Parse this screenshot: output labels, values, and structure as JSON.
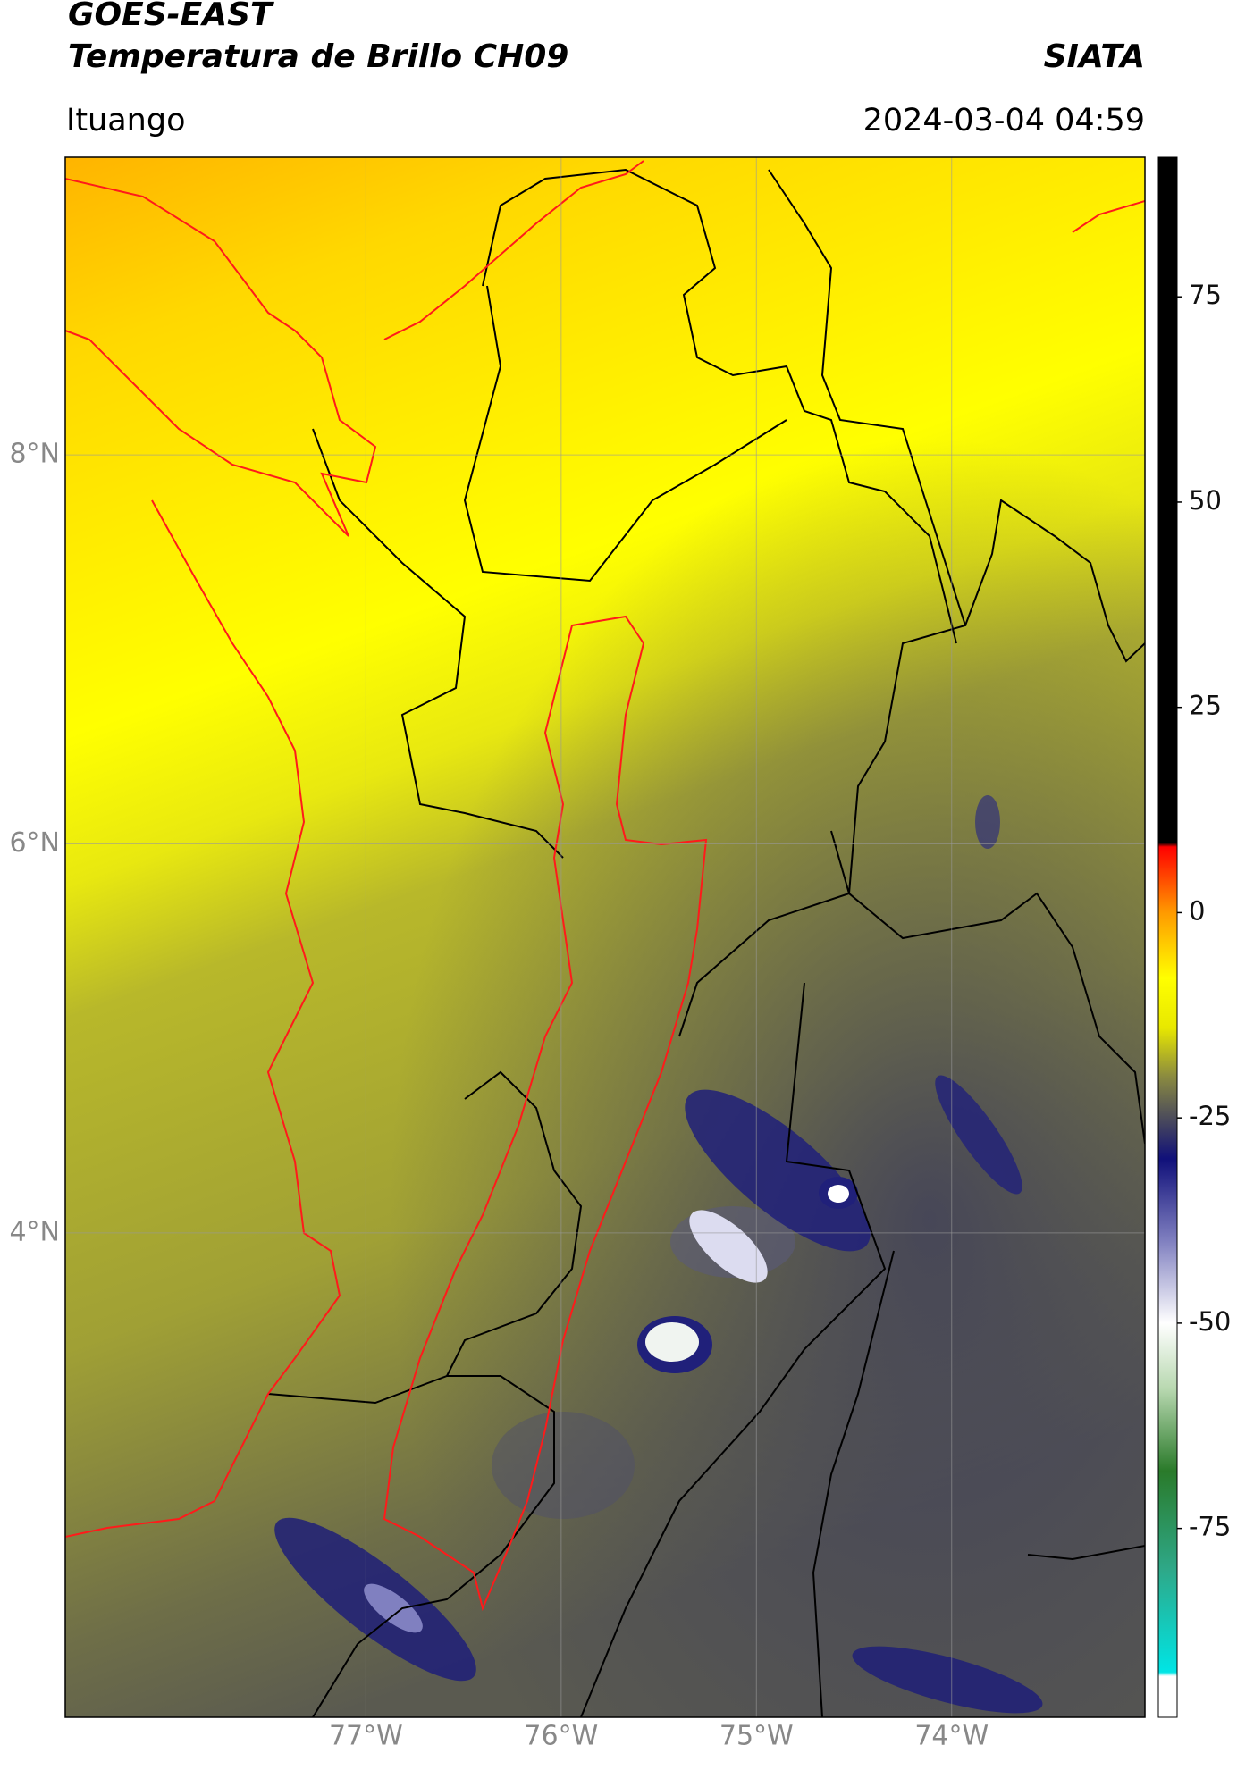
{
  "header": {
    "title": "GOES-EAST",
    "subtitle": "Temperatura de Brillo CH09",
    "organization": "SIATA",
    "location": "Ituango",
    "datetime": "2024-03-04 04:59"
  },
  "map": {
    "xlim": [
      -78.54,
      -73.01
    ],
    "ylim": [
      1.51,
      9.53
    ],
    "xticks": [
      {
        "value": -77,
        "label": "77°W"
      },
      {
        "value": -76,
        "label": "76°W"
      },
      {
        "value": -75,
        "label": "75°W"
      },
      {
        "value": -74,
        "label": "74°W"
      }
    ],
    "yticks": [
      {
        "value": 8,
        "label": "8°N"
      },
      {
        "value": 6,
        "label": "6°N"
      },
      {
        "value": 4,
        "label": "4°N"
      }
    ],
    "grid": true
  },
  "colorbar": {
    "lim": [
      -98,
      92
    ],
    "ticks": [
      75,
      50,
      25,
      0,
      -25,
      -50,
      -75
    ],
    "colors": [
      {
        "value": -98,
        "color": "#ffffff"
      },
      {
        "value": -93,
        "color": "#ffffff"
      },
      {
        "value": -92.5,
        "color": "#00e5e5"
      },
      {
        "value": -80,
        "color": "#2ea888"
      },
      {
        "value": -68,
        "color": "#2a7a2a"
      },
      {
        "value": -58,
        "color": "#b8d8b0"
      },
      {
        "value": -50,
        "color": "#ffffff"
      },
      {
        "value": -40,
        "color": "#8080c0"
      },
      {
        "value": -30,
        "color": "#10107a"
      },
      {
        "value": -26,
        "color": "#404060"
      },
      {
        "value": -20,
        "color": "#8a8a40"
      },
      {
        "value": -14,
        "color": "#e8e800"
      },
      {
        "value": -8,
        "color": "#ffff00"
      },
      {
        "value": 0,
        "color": "#ff9a00"
      },
      {
        "value": 8,
        "color": "#ff0000"
      },
      {
        "value": 8.5,
        "color": "#000000"
      },
      {
        "value": 92,
        "color": "#000000"
      }
    ]
  }
}
